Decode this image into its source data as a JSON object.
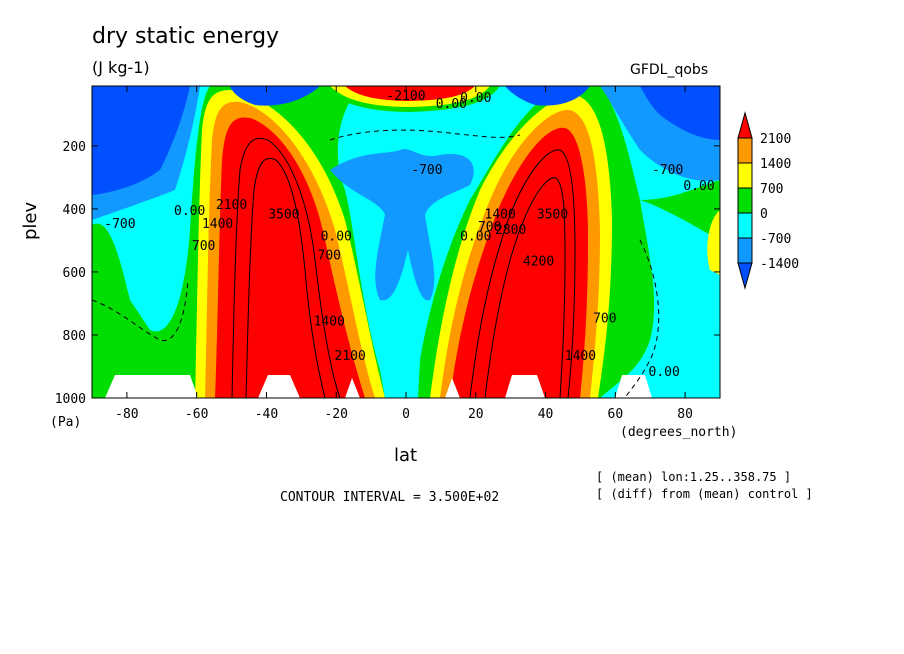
{
  "chart_data": {
    "type": "heatmap",
    "title": "dry static energy",
    "units": "(J kg-1)",
    "model": "GFDL_qobs",
    "xlabel": "lat",
    "xunit": "(degrees_north)",
    "ylabel": "plev",
    "yunit": "(Pa)",
    "xlim": [
      -90,
      90
    ],
    "ylim": [
      1000,
      10
    ],
    "x_ticks": [
      -80,
      -60,
      -40,
      -20,
      0,
      20,
      40,
      60,
      80
    ],
    "y_ticks": [
      200,
      400,
      600,
      800,
      1000
    ],
    "contour_interval_text": "CONTOUR INTERVAL = 3.500E+02",
    "notes": [
      "[ (mean) lon:1.25..358.75 ]",
      "[ (diff) from (mean) control ]"
    ],
    "legend": {
      "labels": [
        "2100",
        "1400",
        "700",
        "0",
        "-700",
        "-1400"
      ],
      "colors": [
        "#ff0000",
        "#ff9900",
        "#ffff00",
        "#00dd00",
        "#00ffff",
        "#1199ff",
        "#0050ff"
      ]
    },
    "contour_labels": [
      {
        "text": "-2100",
        "x": 0,
        "y": 55
      },
      {
        "text": "0.00",
        "x": 20,
        "y": 60
      },
      {
        "text": "0.00",
        "x": 13,
        "y": 80
      },
      {
        "text": "-700",
        "x": 6,
        "y": 290
      },
      {
        "text": "-700",
        "x": 75,
        "y": 290
      },
      {
        "text": "0.00",
        "x": 84,
        "y": 340
      },
      {
        "text": "-700",
        "x": -82,
        "y": 460
      },
      {
        "text": "0.00",
        "x": -62,
        "y": 420
      },
      {
        "text": "700",
        "x": -58,
        "y": 530
      },
      {
        "text": "1400",
        "x": -54,
        "y": 460
      },
      {
        "text": "2100",
        "x": -50,
        "y": 400
      },
      {
        "text": "3500",
        "x": -35,
        "y": 430
      },
      {
        "text": "700",
        "x": -22,
        "y": 560
      },
      {
        "text": "0.00",
        "x": -20,
        "y": 500
      },
      {
        "text": "1400",
        "x": -22,
        "y": 770
      },
      {
        "text": "2100",
        "x": -16,
        "y": 880
      },
      {
        "text": "0.00",
        "x": 20,
        "y": 500
      },
      {
        "text": "700",
        "x": 24,
        "y": 470
      },
      {
        "text": "1400",
        "x": 27,
        "y": 430
      },
      {
        "text": "2800",
        "x": 30,
        "y": 480
      },
      {
        "text": "3500",
        "x": 42,
        "y": 430
      },
      {
        "text": "4200",
        "x": 38,
        "y": 580
      },
      {
        "text": "700",
        "x": 57,
        "y": 760
      },
      {
        "text": "1400",
        "x": 50,
        "y": 880
      },
      {
        "text": "0.00",
        "x": 74,
        "y": 930
      }
    ]
  },
  "colorbar_labels": [
    "2100",
    "1400",
    "700",
    "0",
    "-700",
    "-1400"
  ]
}
